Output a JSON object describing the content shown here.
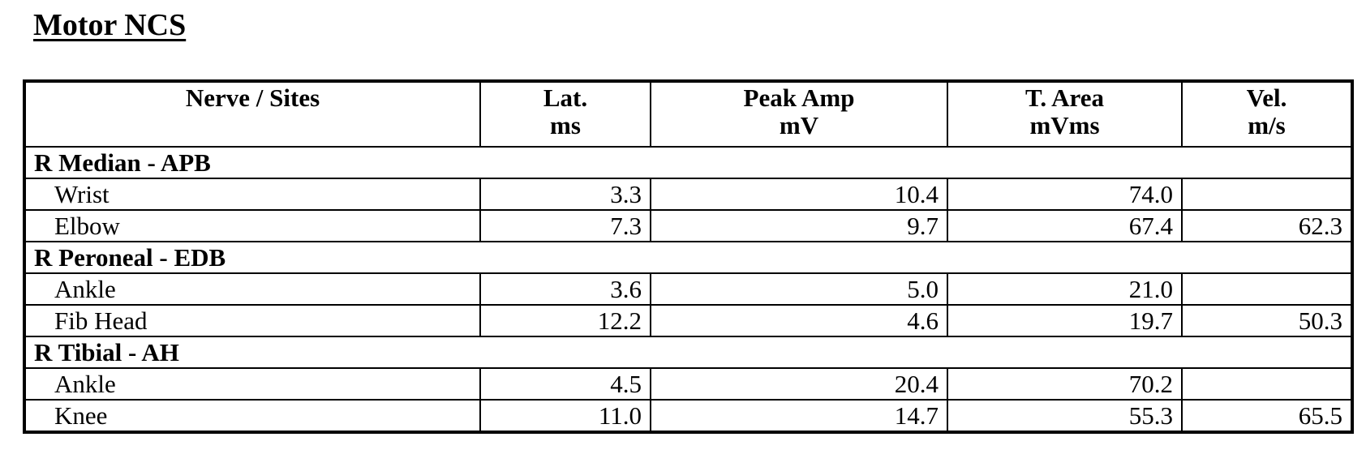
{
  "title": "Motor NCS",
  "columns": [
    {
      "line1": "Nerve / Sites",
      "line2": ""
    },
    {
      "line1": "Lat.",
      "line2": "ms"
    },
    {
      "line1": "Peak Amp",
      "line2": "mV"
    },
    {
      "line1": "T. Area",
      "line2": "mVms"
    },
    {
      "line1": "Vel.",
      "line2": "m/s"
    }
  ],
  "groups": [
    {
      "name": "R Median - APB",
      "rows": [
        {
          "site": "Wrist",
          "lat": "3.3",
          "amp": "10.4",
          "area": "74.0",
          "vel": ""
        },
        {
          "site": "Elbow",
          "lat": "7.3",
          "amp": "9.7",
          "area": "67.4",
          "vel": "62.3"
        }
      ]
    },
    {
      "name": "R Peroneal - EDB",
      "rows": [
        {
          "site": "Ankle",
          "lat": "3.6",
          "amp": "5.0",
          "area": "21.0",
          "vel": ""
        },
        {
          "site": "Fib Head",
          "lat": "12.2",
          "amp": "4.6",
          "area": "19.7",
          "vel": "50.3"
        }
      ]
    },
    {
      "name": "R Tibial - AH",
      "rows": [
        {
          "site": "Ankle",
          "lat": "4.5",
          "amp": "20.4",
          "area": "70.2",
          "vel": ""
        },
        {
          "site": "Knee",
          "lat": "11.0",
          "amp": "14.7",
          "area": "55.3",
          "vel": "65.5"
        }
      ]
    }
  ]
}
